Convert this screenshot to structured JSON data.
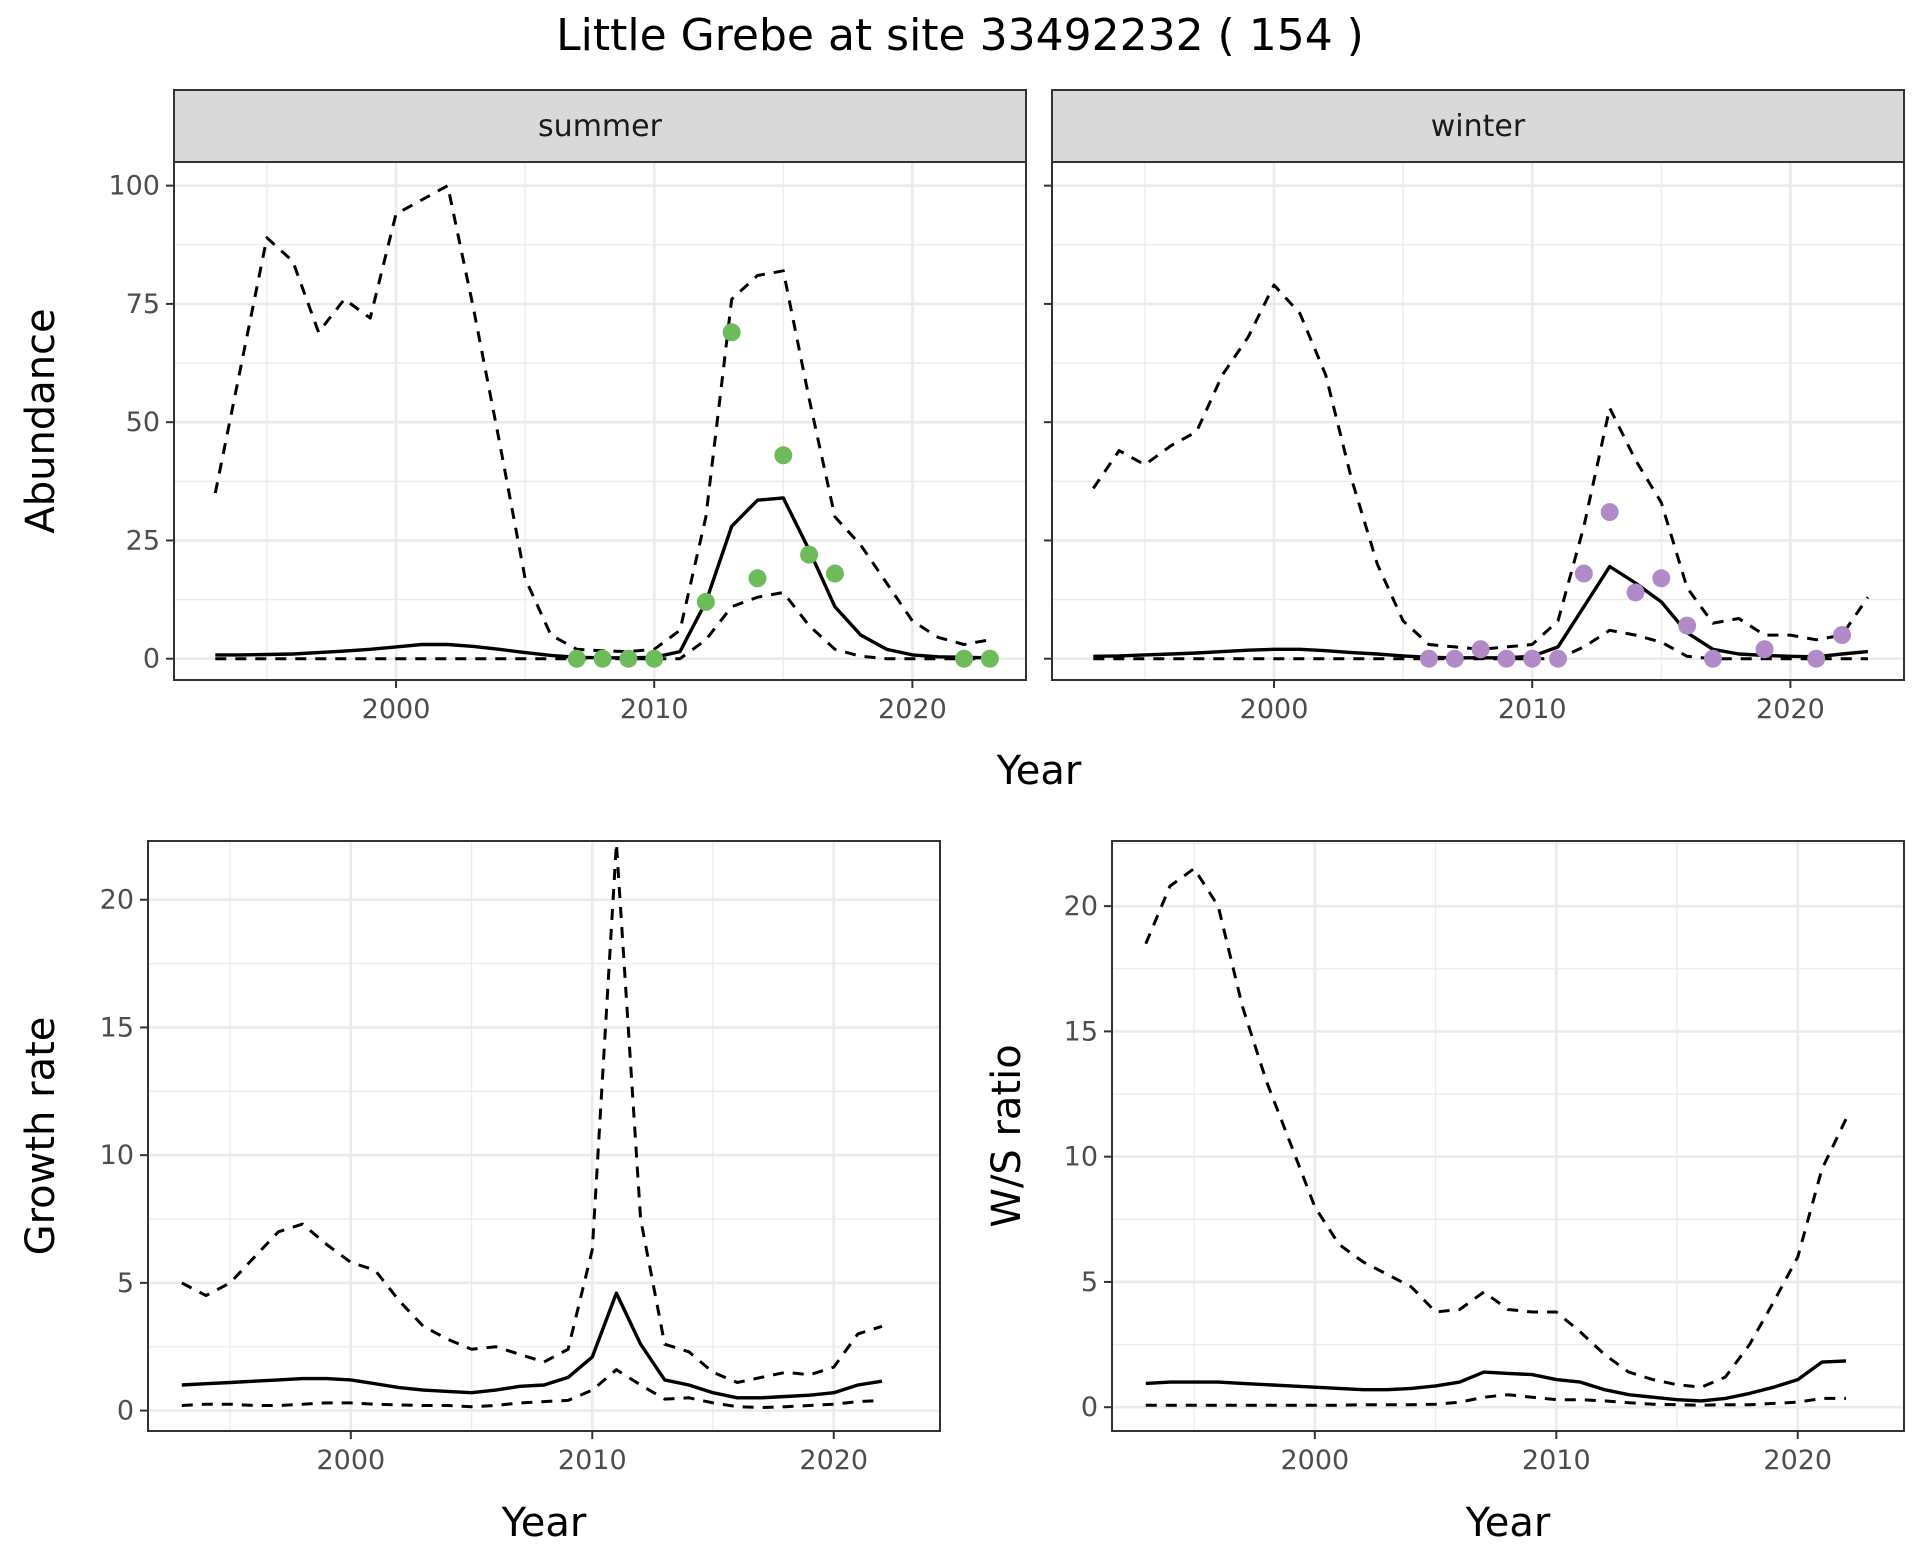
{
  "title": "Little Grebe at site 33492232 ( 154 )",
  "colors": {
    "summer_points": "#6dbb5a",
    "winter_points": "#b28ac7",
    "strip_fill": "#d9d9d9",
    "grid": "#ebebeb",
    "line": "#000000"
  },
  "chart_data": [
    {
      "id": "summer",
      "type": "line",
      "facet": "summer",
      "xlabel": "Year",
      "ylabel": "Abundance",
      "xlim": [
        1991.4,
        2024.4
      ],
      "ylim": [
        -4.5,
        105
      ],
      "xticks": [
        2000,
        2010,
        2020
      ],
      "yticks": [
        0,
        25,
        50,
        75,
        100
      ],
      "x": [
        1993,
        1994,
        1995,
        1996,
        1997,
        1998,
        1999,
        2000,
        2001,
        2002,
        2003,
        2004,
        2005,
        2006,
        2007,
        2008,
        2009,
        2010,
        2011,
        2012,
        2013,
        2014,
        2015,
        2016,
        2017,
        2018,
        2019,
        2020,
        2021,
        2022,
        2023
      ],
      "series": [
        {
          "role": "estimate",
          "style": "solid",
          "values": [
            0.8,
            0.8,
            0.9,
            1.0,
            1.3,
            1.6,
            2.0,
            2.5,
            3.0,
            3.0,
            2.6,
            2.0,
            1.3,
            0.7,
            0.3,
            0.2,
            0.2,
            0.3,
            1.5,
            12,
            28,
            33.5,
            34,
            23,
            11,
            5,
            2,
            0.8,
            0.4,
            0.3,
            0.2
          ]
        },
        {
          "role": "upper",
          "style": "dashed",
          "values": [
            35,
            62,
            89,
            84,
            69,
            76,
            72,
            94,
            97,
            100,
            74,
            46,
            17,
            5,
            2,
            1.7,
            1.5,
            2,
            6,
            30,
            76,
            81,
            82,
            55,
            30,
            24,
            16,
            8,
            4.5,
            3,
            4
          ]
        },
        {
          "role": "lower",
          "style": "dashed",
          "values": [
            0,
            0,
            0,
            0,
            0,
            0,
            0,
            0,
            0,
            0,
            0,
            0,
            0,
            0,
            0,
            0,
            0,
            0,
            0,
            4,
            11,
            13,
            14,
            7,
            2,
            0.5,
            0,
            0,
            0,
            0,
            0
          ]
        }
      ],
      "points": {
        "x": [
          2007,
          2008,
          2009,
          2010,
          2012,
          2013,
          2014,
          2015,
          2016,
          2017,
          2022,
          2023
        ],
        "y": [
          0,
          0,
          0,
          0,
          12,
          69,
          17,
          43,
          22,
          18,
          0,
          0
        ]
      }
    },
    {
      "id": "winter",
      "type": "line",
      "facet": "winter",
      "xlabel": "Year",
      "ylabel": "",
      "xlim": [
        1991.4,
        2024.4
      ],
      "ylim": [
        -4.5,
        105
      ],
      "xticks": [
        2000,
        2010,
        2020
      ],
      "yticks": [
        0,
        25,
        50,
        75,
        100
      ],
      "x": [
        1993,
        1994,
        1995,
        1996,
        1997,
        1998,
        1999,
        2000,
        2001,
        2002,
        2003,
        2004,
        2005,
        2006,
        2007,
        2008,
        2009,
        2010,
        2011,
        2012,
        2013,
        2014,
        2015,
        2016,
        2017,
        2018,
        2019,
        2020,
        2021,
        2022,
        2023
      ],
      "series": [
        {
          "role": "estimate",
          "style": "solid",
          "values": [
            0.5,
            0.6,
            0.8,
            1.0,
            1.2,
            1.5,
            1.8,
            2.0,
            2.0,
            1.7,
            1.3,
            1.0,
            0.6,
            0.3,
            0.2,
            0.2,
            0.2,
            0.5,
            2.5,
            11,
            19.5,
            16,
            12,
            5.5,
            2,
            1,
            0.7,
            0.5,
            0.4,
            1,
            1.5
          ]
        },
        {
          "role": "upper",
          "style": "dashed",
          "values": [
            36,
            44,
            41,
            45,
            48,
            60,
            68,
            79,
            73,
            60,
            38,
            20,
            8,
            3,
            2.5,
            2,
            2.5,
            3,
            8,
            28,
            53,
            42,
            33,
            15,
            7.5,
            8.5,
            5,
            5,
            4,
            5,
            13
          ]
        },
        {
          "role": "lower",
          "style": "dashed",
          "values": [
            0,
            0,
            0,
            0,
            0,
            0,
            0,
            0,
            0,
            0,
            0,
            0,
            0,
            0,
            0,
            0,
            0,
            0,
            0,
            2.5,
            6,
            5,
            3.5,
            0.5,
            0,
            0,
            0,
            0,
            0,
            0,
            0
          ]
        }
      ],
      "points": {
        "x": [
          2006,
          2007,
          2008,
          2009,
          2010,
          2011,
          2012,
          2013,
          2014,
          2015,
          2016,
          2017,
          2019,
          2021,
          2022
        ],
        "y": [
          0,
          0,
          2,
          0,
          0,
          0,
          18,
          31,
          14,
          17,
          7,
          0,
          2,
          0,
          5
        ]
      }
    },
    {
      "id": "growth",
      "type": "line",
      "xlabel": "Year",
      "ylabel": "Growth rate",
      "xlim": [
        1991.6,
        2024.4
      ],
      "ylim": [
        -0.8,
        22.3
      ],
      "xticks": [
        2000,
        2010,
        2020
      ],
      "yticks": [
        0,
        5,
        10,
        15,
        20
      ],
      "x": [
        1993,
        1994,
        1995,
        1996,
        1997,
        1998,
        1999,
        2000,
        2001,
        2002,
        2003,
        2004,
        2005,
        2006,
        2007,
        2008,
        2009,
        2010,
        2011,
        2012,
        2013,
        2014,
        2015,
        2016,
        2017,
        2018,
        2019,
        2020,
        2021,
        2022
      ],
      "series": [
        {
          "role": "estimate",
          "style": "solid",
          "values": [
            1.0,
            1.05,
            1.1,
            1.15,
            1.2,
            1.25,
            1.25,
            1.2,
            1.05,
            0.9,
            0.8,
            0.75,
            0.7,
            0.8,
            0.95,
            1.0,
            1.3,
            2.1,
            4.6,
            2.6,
            1.2,
            1.0,
            0.7,
            0.5,
            0.5,
            0.55,
            0.6,
            0.7,
            1.0,
            1.15
          ]
        },
        {
          "role": "upper",
          "style": "dashed",
          "values": [
            5,
            4.5,
            5,
            6,
            7,
            7.3,
            6.5,
            5.8,
            5.5,
            4.3,
            3.3,
            2.8,
            2.4,
            2.5,
            2.2,
            1.9,
            2.4,
            6.3,
            22.2,
            7.5,
            2.6,
            2.3,
            1.5,
            1.1,
            1.3,
            1.5,
            1.4,
            1.7,
            3.0,
            3.3
          ]
        },
        {
          "role": "lower",
          "style": "dashed",
          "values": [
            0.2,
            0.25,
            0.25,
            0.2,
            0.2,
            0.25,
            0.3,
            0.3,
            0.25,
            0.22,
            0.2,
            0.2,
            0.15,
            0.2,
            0.3,
            0.35,
            0.4,
            0.8,
            1.6,
            1.0,
            0.45,
            0.5,
            0.3,
            0.15,
            0.12,
            0.15,
            0.2,
            0.25,
            0.35,
            0.4
          ]
        }
      ]
    },
    {
      "id": "ratio",
      "type": "line",
      "xlabel": "Year",
      "ylabel": "W/S ratio",
      "xlim": [
        1991.6,
        2024.4
      ],
      "ylim": [
        -0.95,
        22.6
      ],
      "xticks": [
        2000,
        2010,
        2020
      ],
      "yticks": [
        0,
        5,
        10,
        15,
        20
      ],
      "x": [
        1993,
        1994,
        1995,
        1996,
        1997,
        1998,
        1999,
        2000,
        2001,
        2002,
        2003,
        2004,
        2005,
        2006,
        2007,
        2008,
        2009,
        2010,
        2011,
        2012,
        2013,
        2014,
        2015,
        2016,
        2017,
        2018,
        2019,
        2020,
        2021,
        2022
      ],
      "series": [
        {
          "role": "estimate",
          "style": "solid",
          "values": [
            0.95,
            1.0,
            1.0,
            1.0,
            0.95,
            0.9,
            0.85,
            0.8,
            0.75,
            0.7,
            0.7,
            0.75,
            0.85,
            1.0,
            1.4,
            1.35,
            1.3,
            1.1,
            1.0,
            0.7,
            0.5,
            0.4,
            0.3,
            0.25,
            0.35,
            0.55,
            0.8,
            1.1,
            1.8,
            1.85
          ]
        },
        {
          "role": "upper",
          "style": "dashed",
          "values": [
            18.5,
            20.8,
            21.5,
            20,
            16,
            13,
            10.5,
            8,
            6.5,
            5.8,
            5.3,
            4.8,
            3.8,
            3.9,
            4.6,
            3.9,
            3.8,
            3.8,
            3.0,
            2.1,
            1.4,
            1.1,
            0.9,
            0.8,
            1.2,
            2.5,
            4.2,
            6.0,
            9.5,
            11.5
          ]
        },
        {
          "role": "lower",
          "style": "dashed",
          "values": [
            0.08,
            0.08,
            0.08,
            0.08,
            0.08,
            0.08,
            0.08,
            0.08,
            0.08,
            0.1,
            0.1,
            0.1,
            0.12,
            0.2,
            0.4,
            0.5,
            0.4,
            0.3,
            0.3,
            0.25,
            0.18,
            0.12,
            0.1,
            0.08,
            0.1,
            0.1,
            0.15,
            0.2,
            0.35,
            0.35
          ]
        }
      ]
    }
  ]
}
